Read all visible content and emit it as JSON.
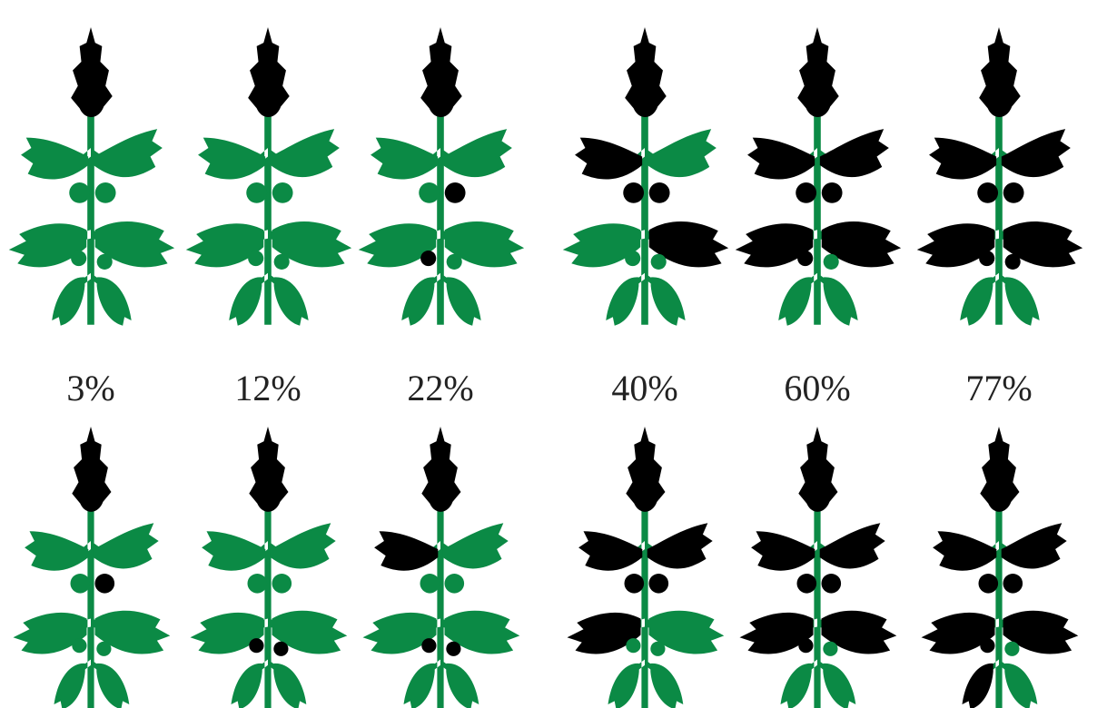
{
  "scale_labels": [
    "3%",
    "12%",
    "22%",
    "40%",
    "60%",
    "77%"
  ]
}
